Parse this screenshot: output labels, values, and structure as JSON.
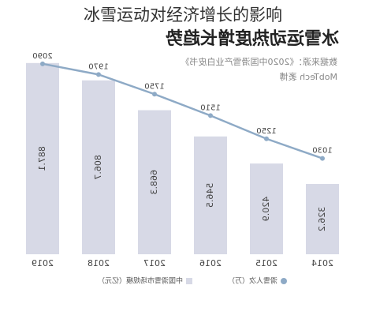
{
  "heading": "冰雪运动对经济增长的影响",
  "chart_data": {
    "type": "bar_line",
    "title": "冰雪运动热度增长趋势",
    "source": [
      "数据来源：《2020中国滑雪产业白皮书》",
      "MobTech 袤博"
    ],
    "categories": [
      "2014",
      "2015",
      "2016",
      "2017",
      "2018",
      "2019"
    ],
    "series": [
      {
        "name": "中国滑雪市场规模（亿元）",
        "type": "bar",
        "color": "#d7d9e6",
        "values": [
          326.2,
          420.9,
          546.5,
          668.3,
          806.7,
          887.1
        ]
      },
      {
        "name": "滑雪人次（万）",
        "type": "line",
        "color": "#8eaac6",
        "values": [
          1030,
          1250,
          1510,
          1750,
          1970,
          2090
        ]
      }
    ]
  }
}
